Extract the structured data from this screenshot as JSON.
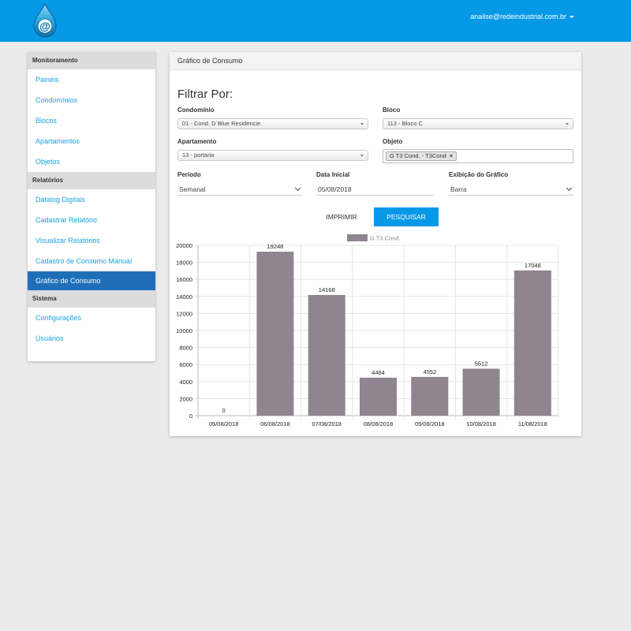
{
  "header": {
    "user_email": "analise@redeindustrial.com.br",
    "brand_color": "#0699e8"
  },
  "sidebar": {
    "sections": [
      {
        "title": "Monitoramento",
        "items": [
          "Painéis",
          "Condomínios",
          "Blocos",
          "Apartamentos",
          "Objetos"
        ]
      },
      {
        "title": "Relatórios",
        "items": [
          "Datalog Digitais",
          "Cadastrar Relatório",
          "Visualizar Relatórios",
          "Cadastro de Consumo Manual",
          "Gráfico de Consumo"
        ]
      },
      {
        "title": "Sistema",
        "items": [
          "Configurações",
          "Usuários"
        ]
      }
    ],
    "active_item": "Gráfico de Consumo"
  },
  "panel": {
    "header": "Gráfico de Consumo",
    "filter_title": "Filtrar Por:",
    "condominio": {
      "label": "Condomínio",
      "value": "01 - Cond. D`Blue Residencie."
    },
    "bloco": {
      "label": "Bloco",
      "value": "113 - Bloco C"
    },
    "apartamento": {
      "label": "Apartamento",
      "value": "13 - portaria"
    },
    "objeto": {
      "label": "Objeto",
      "tag": "G T3 Cond. - T3Cond",
      "remove_glyph": "×"
    },
    "periodo": {
      "label": "Período",
      "value": "Semanal"
    },
    "data_inicial": {
      "label": "Data Inicial",
      "value": "05/08/2018"
    },
    "exibicao": {
      "label": "Exibição do Gráfico",
      "value": "Barra"
    },
    "print_button": "IMPRIMIR",
    "search_button": "PESQUISAR"
  },
  "chart_data": {
    "type": "bar",
    "categories": [
      "05/08/2018",
      "06/08/2018",
      "07/08/2018",
      "08/08/2018",
      "09/08/2018",
      "10/08/2018",
      "11/08/2018"
    ],
    "series": [
      {
        "name": "G T3 Cond.",
        "values": [
          0,
          19248,
          14168,
          4464,
          4552,
          5512,
          17048
        ],
        "color": "#8f8490"
      }
    ],
    "y_ticks": [
      0,
      2000,
      4000,
      6000,
      8000,
      10000,
      12000,
      14000,
      16000,
      18000,
      20000
    ],
    "ylim": [
      0,
      20000
    ],
    "legend": "top",
    "grid": true
  }
}
